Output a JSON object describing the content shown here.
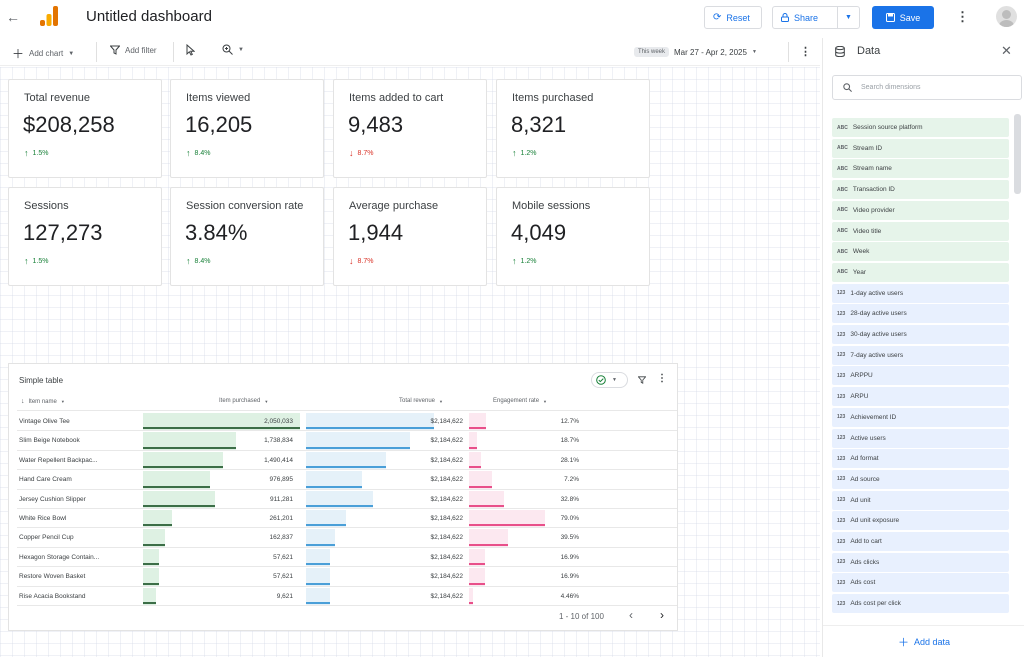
{
  "header": {
    "title": "Untitled dashboard",
    "reset_label": "Reset",
    "share_label": "Share",
    "save_label": "Save"
  },
  "toolbar": {
    "add_chart_label": "Add chart",
    "add_filter_label": "Add filter",
    "week_chip": "This week",
    "date_range": "Mar 27 - Apr 2, 2025"
  },
  "scorecards": [
    {
      "label": "Total revenue",
      "value": "$208,258",
      "delta": "1.5%",
      "direction": "up"
    },
    {
      "label": "Items viewed",
      "value": "16,205",
      "delta": "8.4%",
      "direction": "up"
    },
    {
      "label": "Items added to cart",
      "value": "9,483",
      "delta": "8.7%",
      "direction": "down"
    },
    {
      "label": "Items purchased",
      "value": "8,321",
      "delta": "1.2%",
      "direction": "up"
    },
    {
      "label": "Sessions",
      "value": "127,273",
      "delta": "1.5%",
      "direction": "up"
    },
    {
      "label": "Session conversion rate",
      "value": "3.84%",
      "delta": "8.4%",
      "direction": "up"
    },
    {
      "label": "Average purchase",
      "value": "1,944",
      "delta": "8.7%",
      "direction": "down"
    },
    {
      "label": "Mobile sessions",
      "value": "4,049",
      "delta": "1.2%",
      "direction": "up"
    }
  ],
  "table": {
    "title": "Simple table",
    "columns": [
      "Item name",
      "Item purchased",
      "Total revenue",
      "Engagement rate"
    ],
    "rows": [
      {
        "name": "Vintage Olive Tee",
        "purchased": "2,050,033",
        "revenue": "$2,184,622",
        "engagement": "12.7%",
        "p": 0.98,
        "r": 0.8,
        "e": 0.22
      },
      {
        "name": "Slim Beige Notebook",
        "purchased": "1,738,834",
        "revenue": "$2,184,622",
        "engagement": "18.7%",
        "p": 0.58,
        "r": 0.65,
        "e": 0.1
      },
      {
        "name": "Water Repellent Backpac...",
        "purchased": "1,490,414",
        "revenue": "$2,184,622",
        "engagement": "28.1%",
        "p": 0.5,
        "r": 0.5,
        "e": 0.15
      },
      {
        "name": "Hand Care Cream",
        "purchased": "976,895",
        "revenue": "$2,184,622",
        "engagement": "7.2%",
        "p": 0.42,
        "r": 0.35,
        "e": 0.3
      },
      {
        "name": "Jersey Cushion Slipper",
        "purchased": "911,281",
        "revenue": "$2,184,622",
        "engagement": "32.8%",
        "p": 0.45,
        "r": 0.42,
        "e": 0.45
      },
      {
        "name": "White Rice Bowl",
        "purchased": "261,201",
        "revenue": "$2,184,622",
        "engagement": "79.0%",
        "p": 0.18,
        "r": 0.25,
        "e": 0.98
      },
      {
        "name": "Copper Pencil Cup",
        "purchased": "162,837",
        "revenue": "$2,184,622",
        "engagement": "39.5%",
        "p": 0.14,
        "r": 0.18,
        "e": 0.5
      },
      {
        "name": "Hexagon Storage Contain...",
        "purchased": "57,621",
        "revenue": "$2,184,622",
        "engagement": "16.9%",
        "p": 0.1,
        "r": 0.15,
        "e": 0.2
      },
      {
        "name": "Restore Woven Basket",
        "purchased": "57,621",
        "revenue": "$2,184,622",
        "engagement": "16.9%",
        "p": 0.1,
        "r": 0.15,
        "e": 0.2
      },
      {
        "name": "Rise Acacia Bookstand",
        "purchased": "9,621",
        "revenue": "$2,184,622",
        "engagement": "4.46%",
        "p": 0.08,
        "r": 0.15,
        "e": 0.05
      }
    ],
    "pager": "1 - 10 of 100"
  },
  "data_panel": {
    "title": "Data",
    "search_placeholder": "Search dimensions",
    "fields": [
      {
        "type": "ABC",
        "label": "Session source platform",
        "kind": "dim"
      },
      {
        "type": "ABC",
        "label": "Stream ID",
        "kind": "dim"
      },
      {
        "type": "ABC",
        "label": "Stream name",
        "kind": "dim"
      },
      {
        "type": "ABC",
        "label": "Transaction ID",
        "kind": "dim"
      },
      {
        "type": "ABC",
        "label": "Video provider",
        "kind": "dim"
      },
      {
        "type": "ABC",
        "label": "Video title",
        "kind": "dim"
      },
      {
        "type": "ABC",
        "label": "Week",
        "kind": "dim"
      },
      {
        "type": "ABC",
        "label": "Year",
        "kind": "dim"
      },
      {
        "type": "123",
        "label": "1-day active users",
        "kind": "met"
      },
      {
        "type": "123",
        "label": "28-day active users",
        "kind": "met"
      },
      {
        "type": "123",
        "label": "30-day active users",
        "kind": "met"
      },
      {
        "type": "123",
        "label": "7-day active users",
        "kind": "met"
      },
      {
        "type": "123",
        "label": "ARPPU",
        "kind": "met"
      },
      {
        "type": "123",
        "label": "ARPU",
        "kind": "met"
      },
      {
        "type": "123",
        "label": "Achievement ID",
        "kind": "met"
      },
      {
        "type": "123",
        "label": "Active users",
        "kind": "met"
      },
      {
        "type": "123",
        "label": "Ad format",
        "kind": "met"
      },
      {
        "type": "123",
        "label": "Ad source",
        "kind": "met"
      },
      {
        "type": "123",
        "label": "Ad unit",
        "kind": "met"
      },
      {
        "type": "123",
        "label": "Ad unit exposure",
        "kind": "met"
      },
      {
        "type": "123",
        "label": "Add to cart",
        "kind": "met"
      },
      {
        "type": "123",
        "label": "Ads clicks",
        "kind": "met"
      },
      {
        "type": "123",
        "label": "Ads cost",
        "kind": "met"
      },
      {
        "type": "123",
        "label": "Ads cost per click",
        "kind": "met"
      }
    ],
    "add_data_label": "Add data"
  },
  "colors": {
    "accent": "#1a73e8",
    "purchased_bar": "#34a853",
    "revenue_bar": "#4a9fd8",
    "engagement_bar": "#e8508a"
  }
}
